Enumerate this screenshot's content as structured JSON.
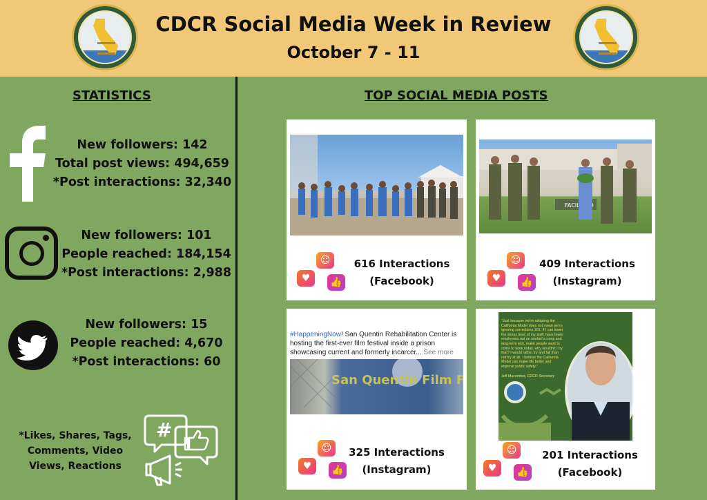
{
  "header": {
    "title": "CDCR Social Media Week in Review",
    "dates": "October 7 - 11",
    "seal_icon": "cdcr-seal-icon"
  },
  "statistics": {
    "heading": "STATISTICS",
    "facebook": {
      "icon": "facebook-icon",
      "lines": [
        "New followers: 142",
        "Total post views: 494,659",
        "*Post interactions: 32,340"
      ]
    },
    "instagram": {
      "icon": "instagram-icon",
      "lines": [
        "New followers: 101",
        "People reached: 184,154",
        "*Post interactions: 2,988"
      ]
    },
    "twitter": {
      "icon": "twitter-icon",
      "lines": [
        "New followers: 15",
        "People reached: 4,670",
        "*Post interactions: 60"
      ]
    },
    "footnote": "*Likes, Shares, Tags, Comments, Video Views, Reactions",
    "footnote_icon": "social-speech-bubbles-icon"
  },
  "posts": {
    "heading": "TOP SOCIAL MEDIA POSTS",
    "items": [
      {
        "count": "616 Interactions",
        "platform": "(Facebook)"
      },
      {
        "count": "409 Interactions",
        "platform": "(Instagram)"
      },
      {
        "count": "325 Interactions",
        "platform": "(Instagram)"
      },
      {
        "count": "201 Interactions",
        "platform": "(Facebook)"
      }
    ],
    "post3_text": {
      "hashtag": "#HappeningNow",
      "body": "! San Quentin Rehabilitation Center is hosting the first-ever film festival inside a prison showcasing current and formerly incarcer...",
      "more": " See more",
      "shirt_text": "San Quentin Film Festival"
    },
    "post4_quote": {
      "text": "\"Just because we're adopting the California Model does not mean we're ignoring corrections 101. If I can lower the stress level of my staff, have fewer employees out on worker's comp and long-term sick, make people want to come to work today, why wouldn't I try that? I would rather try and fail than not try at all. I believe the California Model can make life better and improve public safety.\"",
      "author": "Jeff Macomber, CDCR Secretary"
    }
  },
  "colors": {
    "header_bg": "#f0c878",
    "body_bg": "#7fa75f",
    "text": "#111111",
    "reaction_gradient": [
      "#f5a623",
      "#e8388a",
      "#b040d0"
    ]
  }
}
